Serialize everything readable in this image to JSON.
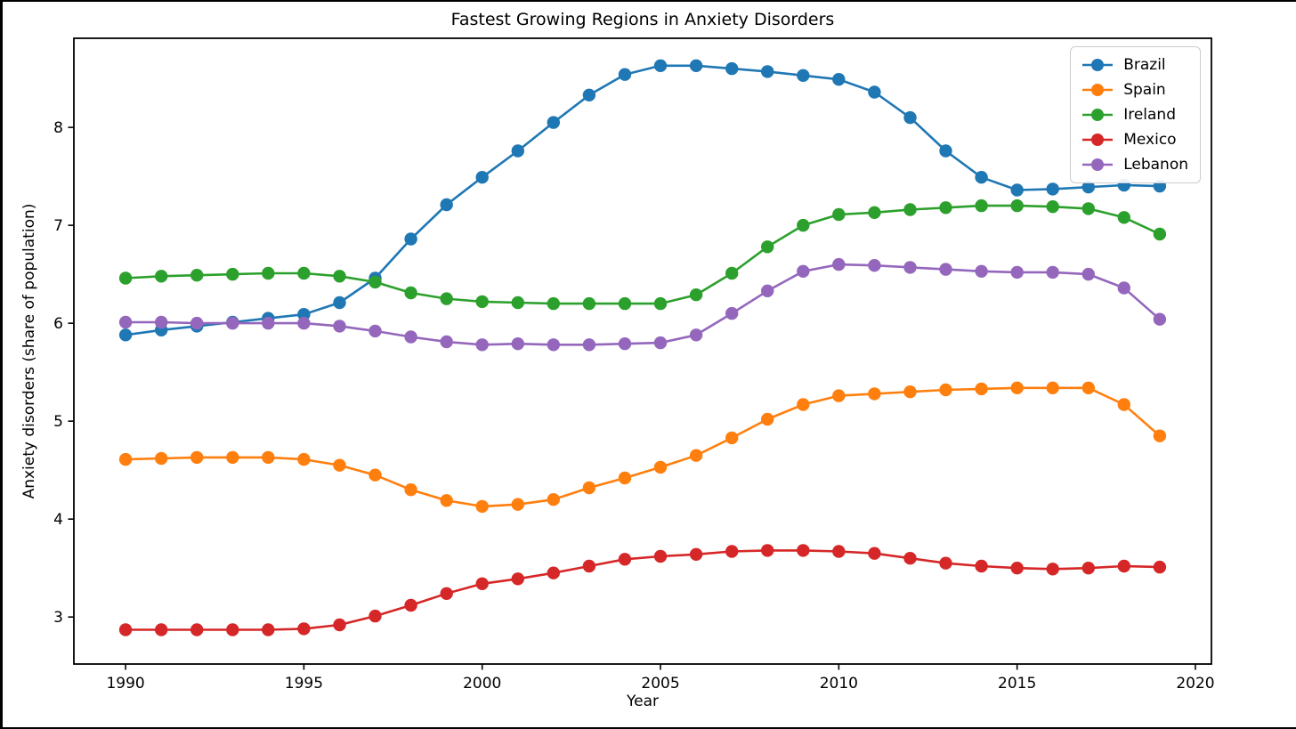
{
  "figure": {
    "background": "#ffffff",
    "frame_color": "#000000",
    "axes_color": "#000000"
  },
  "chart_data": {
    "type": "line",
    "title": "Fastest Growing Regions in Anxiety Disorders",
    "xlabel": "Year",
    "ylabel": "Anxiety disorders (share of population)",
    "grid": false,
    "legend_position": "upper right",
    "marker": "circle",
    "xlim": [
      1988.55,
      2020.45
    ],
    "ylim": [
      2.52,
      8.91
    ],
    "xticks": [
      1990,
      1995,
      2000,
      2005,
      2010,
      2015,
      2020
    ],
    "yticks": [
      3,
      4,
      5,
      6,
      7,
      8
    ],
    "x": [
      1990,
      1991,
      1992,
      1993,
      1994,
      1995,
      1996,
      1997,
      1998,
      1999,
      2000,
      2001,
      2002,
      2003,
      2004,
      2005,
      2006,
      2007,
      2008,
      2009,
      2010,
      2011,
      2012,
      2013,
      2014,
      2015,
      2016,
      2017,
      2018,
      2019
    ],
    "series": [
      {
        "name": "Brazil",
        "color": "#1f77b4",
        "values": [
          5.88,
          5.93,
          5.97,
          6.01,
          6.05,
          6.09,
          6.21,
          6.46,
          6.86,
          7.21,
          7.49,
          7.76,
          8.05,
          8.33,
          8.54,
          8.63,
          8.63,
          8.6,
          8.57,
          8.53,
          8.49,
          8.36,
          8.1,
          7.76,
          7.49,
          7.36,
          7.37,
          7.39,
          7.41,
          7.4
        ]
      },
      {
        "name": "Spain",
        "color": "#ff7f0e",
        "values": [
          4.61,
          4.62,
          4.63,
          4.63,
          4.63,
          4.61,
          4.55,
          4.45,
          4.3,
          4.19,
          4.13,
          4.15,
          4.2,
          4.32,
          4.42,
          4.53,
          4.65,
          4.83,
          5.02,
          5.17,
          5.26,
          5.28,
          5.3,
          5.32,
          5.33,
          5.34,
          5.34,
          5.34,
          5.17,
          4.85
        ]
      },
      {
        "name": "Ireland",
        "color": "#2ca02c",
        "values": [
          6.46,
          6.48,
          6.49,
          6.5,
          6.51,
          6.51,
          6.48,
          6.42,
          6.31,
          6.25,
          6.22,
          6.21,
          6.2,
          6.2,
          6.2,
          6.2,
          6.29,
          6.51,
          6.78,
          7.0,
          7.11,
          7.13,
          7.16,
          7.18,
          7.2,
          7.2,
          7.19,
          7.17,
          7.08,
          6.91
        ]
      },
      {
        "name": "Mexico",
        "color": "#d62728",
        "values": [
          2.87,
          2.87,
          2.87,
          2.87,
          2.87,
          2.88,
          2.92,
          3.01,
          3.12,
          3.24,
          3.34,
          3.39,
          3.45,
          3.52,
          3.59,
          3.62,
          3.64,
          3.67,
          3.68,
          3.68,
          3.67,
          3.65,
          3.6,
          3.55,
          3.52,
          3.5,
          3.49,
          3.5,
          3.52,
          3.51
        ]
      },
      {
        "name": "Lebanon",
        "color": "#9467bd",
        "values": [
          6.01,
          6.01,
          6.0,
          6.0,
          6.0,
          6.0,
          5.97,
          5.92,
          5.86,
          5.81,
          5.78,
          5.79,
          5.78,
          5.78,
          5.79,
          5.8,
          5.88,
          6.1,
          6.33,
          6.53,
          6.6,
          6.59,
          6.57,
          6.55,
          6.53,
          6.52,
          6.52,
          6.5,
          6.36,
          6.04
        ]
      }
    ]
  }
}
